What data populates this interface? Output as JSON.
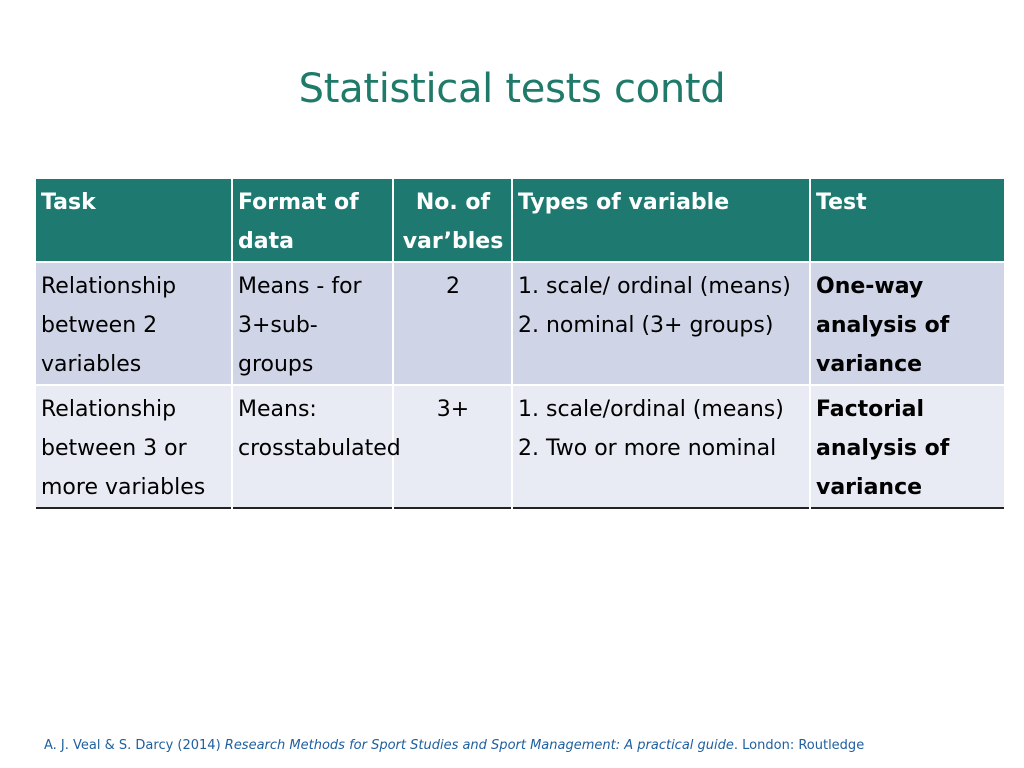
{
  "slide": {
    "title": "Statistical tests contd"
  },
  "table": {
    "headers": [
      "Task",
      "Format of data",
      "No. of var’bles",
      "Types of variable",
      "Test"
    ],
    "rows": [
      {
        "task": "Relationship between  2 variables",
        "format": "Means - for 3+sub-groups",
        "num_vars": "2",
        "types": [
          "1. scale/ ordinal (means)",
          "2. nominal (3+ groups)"
        ],
        "test": "One-way analysis of variance"
      },
      {
        "task": "Relationship between 3 or more variables",
        "format": "Means: crosstabulated",
        "num_vars": "3+",
        "types": [
          "1. scale/ordinal (means)",
          "2. Two or more nominal"
        ],
        "test": "Factorial analysis of variance"
      }
    ]
  },
  "citation": {
    "authors": "A. J. Veal & S. Darcy (2014) ",
    "book_title": "Research Methods for Sport Studies and Sport Management: A practical guide",
    "publisher": ". London: Routledge"
  }
}
